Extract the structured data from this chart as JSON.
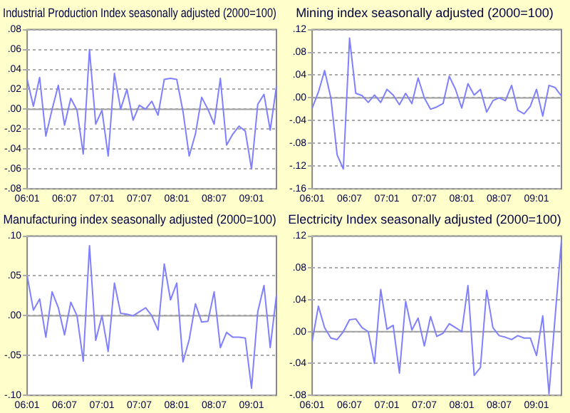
{
  "chart_data": [
    {
      "type": "line",
      "title": "Industrial Production Index seasonally adjusted (2000=100)",
      "color": "#8080ff",
      "grid": "y",
      "ref_lines": [
        {
          "axis": "y",
          "value": 0,
          "color": "#a0a0a0"
        }
      ],
      "categories": [
        "06:01",
        null,
        null,
        null,
        null,
        null,
        "06:07",
        null,
        null,
        null,
        null,
        null,
        "07:01",
        null,
        null,
        null,
        null,
        null,
        "07:07",
        null,
        null,
        null,
        null,
        null,
        "08:01",
        null,
        null,
        null,
        null,
        null,
        "08:07",
        null,
        null,
        null,
        null,
        null,
        "09:01",
        null,
        null,
        null,
        null
      ],
      "values": [
        0.03,
        0.003,
        0.032,
        -0.027,
        0.0,
        0.024,
        -0.016,
        0.011,
        -0.001,
        -0.045,
        0.06,
        -0.015,
        -0.001,
        -0.047,
        0.036,
        0.0,
        0.02,
        -0.011,
        0.004,
        0.0,
        0.008,
        -0.006,
        0.03,
        0.031,
        0.03,
        -0.002,
        -0.047,
        -0.025,
        0.012,
        0.0,
        -0.015,
        0.031,
        -0.036,
        -0.025,
        -0.017,
        -0.022,
        -0.06,
        0.005,
        0.015,
        -0.021,
        0.023
      ],
      "ylim": [
        -0.08,
        0.08
      ],
      "yticks": [
        {
          "value": -0.08,
          "label": "-.08"
        },
        {
          "value": -0.06,
          "label": "-.06"
        },
        {
          "value": -0.04,
          "label": "-.04"
        },
        {
          "value": -0.02,
          "label": "-.02"
        },
        {
          "value": 0,
          "label": ".00"
        },
        {
          "value": 0.02,
          "label": ".02"
        },
        {
          "value": 0.04,
          "label": ".04"
        },
        {
          "value": 0.06,
          "label": ".06"
        },
        {
          "value": 0.08,
          "label": ".08"
        }
      ]
    },
    {
      "type": "line",
      "title": "Mining index seasonally adjusted (2000=100)",
      "color": "#8080ff",
      "grid": "y",
      "ref_lines": [
        {
          "axis": "y",
          "value": 0,
          "color": "#a0a0a0"
        }
      ],
      "categories": [
        "06:01",
        null,
        null,
        null,
        null,
        null,
        "06:07",
        null,
        null,
        null,
        null,
        null,
        "07:01",
        null,
        null,
        null,
        null,
        null,
        "07:07",
        null,
        null,
        null,
        null,
        null,
        "08:01",
        null,
        null,
        null,
        null,
        null,
        "08:07",
        null,
        null,
        null,
        null,
        null,
        "09:01",
        null,
        null,
        null,
        null
      ],
      "values": [
        -0.018,
        0.01,
        0.048,
        0.0,
        -0.1,
        -0.125,
        0.105,
        0.008,
        0.004,
        -0.008,
        0.005,
        -0.008,
        0.015,
        0.005,
        -0.012,
        0.008,
        -0.01,
        0.035,
        0.0,
        -0.02,
        -0.016,
        -0.01,
        0.038,
        0.015,
        -0.018,
        0.025,
        0.005,
        0.015,
        -0.025,
        -0.005,
        0.0,
        -0.005,
        0.022,
        -0.022,
        -0.028,
        -0.015,
        0.015,
        -0.032,
        0.022,
        0.018,
        0.003
      ],
      "ylim": [
        -0.16,
        0.12
      ],
      "yticks": [
        {
          "value": -0.16,
          "label": "-.16"
        },
        {
          "value": -0.12,
          "label": "-.12"
        },
        {
          "value": -0.08,
          "label": "-.08"
        },
        {
          "value": -0.04,
          "label": "-.04"
        },
        {
          "value": 0,
          "label": ".00"
        },
        {
          "value": 0.04,
          "label": ".04"
        },
        {
          "value": 0.08,
          "label": ".08"
        },
        {
          "value": 0.12,
          "label": ".12"
        }
      ]
    },
    {
      "type": "line",
      "title": "Manufacturing index seasonally adjusted (2000=100)",
      "color": "#8080ff",
      "grid": "y",
      "ref_lines": [
        {
          "axis": "y",
          "value": 0,
          "color": "#a0a0a0"
        }
      ],
      "categories": [
        "06:01",
        null,
        null,
        null,
        null,
        null,
        "06:07",
        null,
        null,
        null,
        null,
        null,
        "07:01",
        null,
        null,
        null,
        null,
        null,
        "07:07",
        null,
        null,
        null,
        null,
        null,
        "08:01",
        null,
        null,
        null,
        null,
        null,
        "08:07",
        null,
        null,
        null,
        null,
        null,
        "09:01",
        null,
        null,
        null,
        null
      ],
      "values": [
        0.05,
        0.007,
        0.021,
        -0.027,
        0.03,
        0.01,
        -0.024,
        0.017,
        0.0,
        -0.057,
        0.088,
        -0.031,
        0.0,
        -0.045,
        0.041,
        0.003,
        0.002,
        0.0,
        0.005,
        0.01,
        0.0,
        -0.018,
        0.065,
        0.02,
        0.041,
        -0.058,
        -0.03,
        0.015,
        -0.008,
        -0.007,
        0.03,
        -0.04,
        -0.021,
        -0.027,
        -0.027,
        -0.028,
        -0.091,
        0.005,
        0.038,
        -0.04,
        0.026
      ],
      "ylim": [
        -0.1,
        0.1
      ],
      "yticks": [
        {
          "value": -0.1,
          "label": "-.10"
        },
        {
          "value": -0.05,
          "label": "-.05"
        },
        {
          "value": 0,
          "label": ".00"
        },
        {
          "value": 0.05,
          "label": ".05"
        },
        {
          "value": 0.1,
          "label": ".10"
        }
      ]
    },
    {
      "type": "line",
      "title": "Electricity Index seasonally adjusted (2000=100)",
      "color": "#8080ff",
      "grid": "y",
      "ref_lines": [
        {
          "axis": "y",
          "value": 0,
          "color": "#a0a0a0"
        }
      ],
      "categories": [
        "06:01",
        null,
        null,
        null,
        null,
        null,
        "06:07",
        null,
        null,
        null,
        null,
        null,
        "07:01",
        null,
        null,
        null,
        null,
        null,
        "07:07",
        null,
        null,
        null,
        null,
        null,
        "08:01",
        null,
        null,
        null,
        null,
        null,
        "08:07",
        null,
        null,
        null,
        null,
        null,
        "09:01",
        null,
        null,
        null,
        null
      ],
      "values": [
        -0.012,
        0.032,
        0.005,
        -0.008,
        -0.01,
        0.0,
        0.015,
        0.016,
        0.005,
        0.0,
        -0.04,
        0.053,
        0.003,
        0.008,
        -0.052,
        0.038,
        0.002,
        0.017,
        -0.018,
        0.019,
        -0.006,
        -0.002,
        0.01,
        0.005,
        0.0,
        0.058,
        -0.055,
        -0.045,
        0.052,
        0.005,
        -0.005,
        -0.007,
        -0.01,
        -0.005,
        -0.008,
        -0.008,
        -0.03,
        0.02,
        -0.078,
        0.02,
        0.115
      ],
      "ylim": [
        -0.08,
        0.12
      ],
      "yticks": [
        {
          "value": -0.08,
          "label": "-.08"
        },
        {
          "value": -0.04,
          "label": "-.04"
        },
        {
          "value": 0,
          "label": ".00"
        },
        {
          "value": 0.04,
          "label": ".04"
        },
        {
          "value": 0.08,
          "label": ".08"
        },
        {
          "value": 0.12,
          "label": ".12"
        }
      ]
    }
  ]
}
